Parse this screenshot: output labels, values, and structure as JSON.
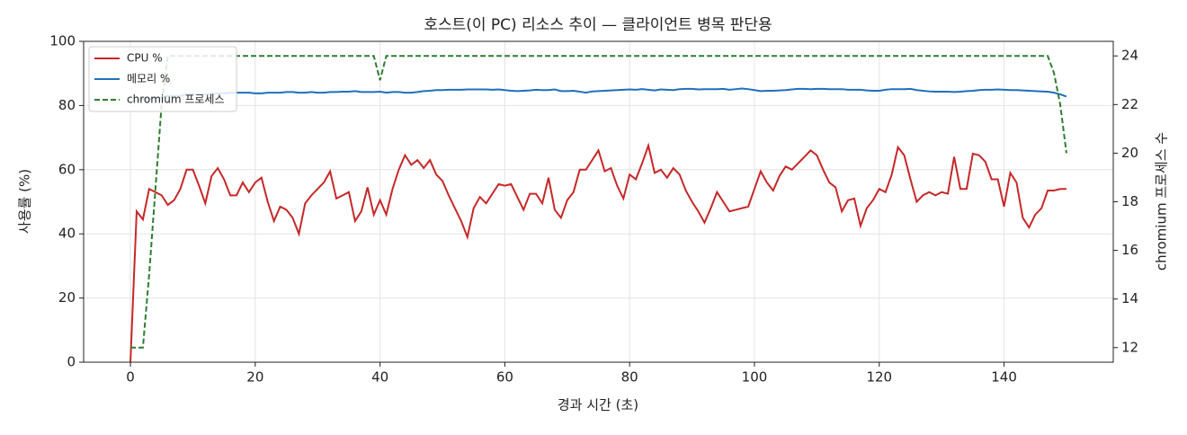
{
  "chart_data": {
    "type": "line",
    "title": "호스트(이 PC) 리소스 추이 — 클라이언트 병목 판단용",
    "x_label": "경과 시간 (초)",
    "y_label": "사용률 (%)",
    "y2_label": "chromium 프로세스 수",
    "xlim": [
      -7.5,
      157.5
    ],
    "xticks": [
      0,
      20,
      40,
      60,
      80,
      100,
      120,
      140
    ],
    "ylim": [
      0,
      100
    ],
    "yticks": [
      0,
      20,
      40,
      60,
      80,
      100
    ],
    "y2lim": [
      11.4,
      24.6
    ],
    "y2ticks": [
      12,
      14,
      16,
      18,
      20,
      22,
      24
    ],
    "grid": true,
    "legend": "upper left",
    "x": [
      0,
      1,
      2,
      3,
      4,
      5,
      6,
      7,
      8,
      9,
      10,
      11,
      12,
      13,
      14,
      15,
      16,
      17,
      18,
      19,
      20,
      21,
      22,
      23,
      24,
      25,
      26,
      27,
      28,
      29,
      30,
      31,
      32,
      33,
      34,
      35,
      36,
      37,
      38,
      39,
      40,
      41,
      42,
      43,
      44,
      45,
      46,
      47,
      48,
      49,
      50,
      51,
      52,
      53,
      54,
      55,
      56,
      57,
      58,
      59,
      60,
      61,
      62,
      63,
      64,
      65,
      66,
      67,
      68,
      69,
      70,
      71,
      72,
      73,
      74,
      75,
      76,
      77,
      78,
      79,
      80,
      81,
      82,
      83,
      84,
      85,
      86,
      87,
      88,
      89,
      90,
      91,
      92,
      93,
      94,
      95,
      96,
      97,
      98,
      99,
      100,
      101,
      102,
      103,
      104,
      105,
      106,
      107,
      108,
      109,
      110,
      111,
      112,
      113,
      114,
      115,
      116,
      117,
      118,
      119,
      120,
      121,
      122,
      123,
      124,
      125,
      126,
      127,
      128,
      129,
      130,
      131,
      132,
      133,
      134,
      135,
      136,
      137,
      138,
      139,
      140,
      141,
      142,
      143,
      144,
      145,
      146,
      147,
      148,
      149,
      150
    ],
    "series": [
      {
        "name": "CPU %",
        "color": "#c62828",
        "style": "solid",
        "values": [
          0,
          47,
          44.5,
          54,
          53,
          52,
          49,
          50.5,
          54,
          60,
          60,
          55,
          49.5,
          58,
          60.5,
          57,
          52,
          52,
          56,
          53,
          56,
          57.5,
          50,
          44,
          48.5,
          47.5,
          45,
          40,
          49.5,
          52,
          54,
          56,
          59.5,
          51,
          52,
          53,
          44,
          47,
          54.5,
          46,
          50.5,
          46,
          54,
          60,
          64.5,
          61.5,
          63,
          60.5,
          63,
          58.5,
          56.5,
          52,
          48,
          44,
          39,
          48,
          51.5,
          49.5,
          52.5,
          55.5,
          55,
          55.5,
          51.5,
          47.5,
          52.5,
          52.5,
          49.5,
          57.5,
          47.5,
          45,
          50.5,
          53,
          60,
          60,
          63,
          66,
          59.5,
          60.5,
          55,
          51,
          58.5,
          57,
          62,
          67.5,
          59,
          60,
          57.5,
          60.5,
          58.5,
          53.5,
          50,
          47,
          43.5,
          48,
          53,
          50,
          47,
          47.5,
          48,
          48.5,
          54,
          59.5,
          56,
          53.5,
          58,
          61,
          60,
          62,
          64,
          66,
          64.5,
          60,
          56,
          54.5,
          47,
          50.5,
          51,
          42.5,
          48,
          50.5,
          54,
          53,
          58.5,
          67,
          64.5,
          57,
          50,
          52,
          53,
          52,
          53,
          52.5,
          64,
          54,
          54,
          65,
          64.5,
          62.5,
          57,
          57,
          48.5,
          59,
          56,
          45,
          42,
          46,
          48,
          53.5,
          53.5,
          54,
          54
        ]
      },
      {
        "name": "메모리 %",
        "color": "#1f6fbf",
        "style": "solid",
        "values": [
          81,
          81.5,
          82,
          82,
          82.5,
          82.5,
          83,
          83,
          83,
          83.5,
          83.5,
          83.5,
          83.5,
          83.5,
          83.8,
          83.8,
          84,
          84,
          84,
          84,
          83.8,
          83.8,
          84,
          84,
          84,
          84.2,
          84.2,
          84,
          84,
          84.2,
          84,
          84,
          84.2,
          84.2,
          84.3,
          84.3,
          84.5,
          84.2,
          84.2,
          84.2,
          84.3,
          84,
          84.2,
          84.2,
          84,
          84,
          84.2,
          84.5,
          84.6,
          84.8,
          84.8,
          84.9,
          84.9,
          84.9,
          85,
          85,
          85,
          85,
          84.9,
          85,
          84.8,
          84.6,
          84.5,
          84.6,
          84.7,
          84.9,
          84.8,
          84.8,
          85,
          84.5,
          84.5,
          84.6,
          84.3,
          84,
          84.4,
          84.5,
          84.6,
          84.7,
          84.8,
          84.9,
          85,
          84.9,
          85.1,
          84.9,
          84.7,
          85,
          84.9,
          84.8,
          85.1,
          85.2,
          85.2,
          85,
          85.1,
          85.1,
          85.1,
          85.2,
          84.9,
          85.1,
          85.3,
          85.1,
          84.8,
          84.5,
          84.6,
          84.6,
          84.7,
          84.8,
          85,
          85.2,
          85.2,
          85.1,
          85.2,
          85.2,
          85.1,
          85.1,
          85.1,
          84.9,
          84.9,
          84.9,
          84.7,
          84.6,
          84.6,
          84.9,
          85.1,
          85.1,
          85.1,
          85.2,
          84.8,
          84.6,
          84.4,
          84.3,
          84.3,
          84.3,
          84.2,
          84.3,
          84.5,
          84.6,
          84.8,
          84.9,
          84.9,
          85,
          84.9,
          84.8,
          84.8,
          84.7,
          84.6,
          84.5,
          84.4,
          84.3,
          84,
          83.5,
          82.8
        ]
      },
      {
        "name": "chromium 프로세스",
        "color": "#2e7d32",
        "style": "dashed",
        "axis": "y2",
        "values": [
          12,
          12,
          12,
          15,
          18.5,
          22,
          24,
          24,
          24,
          24,
          24,
          24,
          24,
          24,
          24,
          24,
          24,
          24,
          24,
          24,
          24,
          24,
          24,
          24,
          24,
          24,
          24,
          24,
          24,
          24,
          24,
          24,
          24,
          24,
          24,
          24,
          24,
          24,
          24,
          24,
          23,
          24,
          24,
          24,
          24,
          24,
          24,
          24,
          24,
          24,
          24,
          24,
          24,
          24,
          24,
          24,
          24,
          24,
          24,
          24,
          24,
          24,
          24,
          24,
          24,
          24,
          24,
          24,
          24,
          24,
          24,
          24,
          24,
          24,
          24,
          24,
          24,
          24,
          24,
          24,
          24,
          24,
          24,
          24,
          24,
          24,
          24,
          24,
          24,
          24,
          24,
          24,
          24,
          24,
          24,
          24,
          24,
          24,
          24,
          24,
          24,
          24,
          24,
          24,
          24,
          24,
          24,
          24,
          24,
          24,
          24,
          24,
          24,
          24,
          24,
          24,
          24,
          24,
          24,
          24,
          24,
          24,
          24,
          24,
          24,
          24,
          24,
          24,
          24,
          24,
          24,
          24,
          24,
          24,
          24,
          24,
          24,
          24,
          24,
          24,
          24,
          24,
          24,
          24,
          24,
          24,
          24,
          24,
          23.3,
          22,
          20
        ]
      }
    ]
  }
}
